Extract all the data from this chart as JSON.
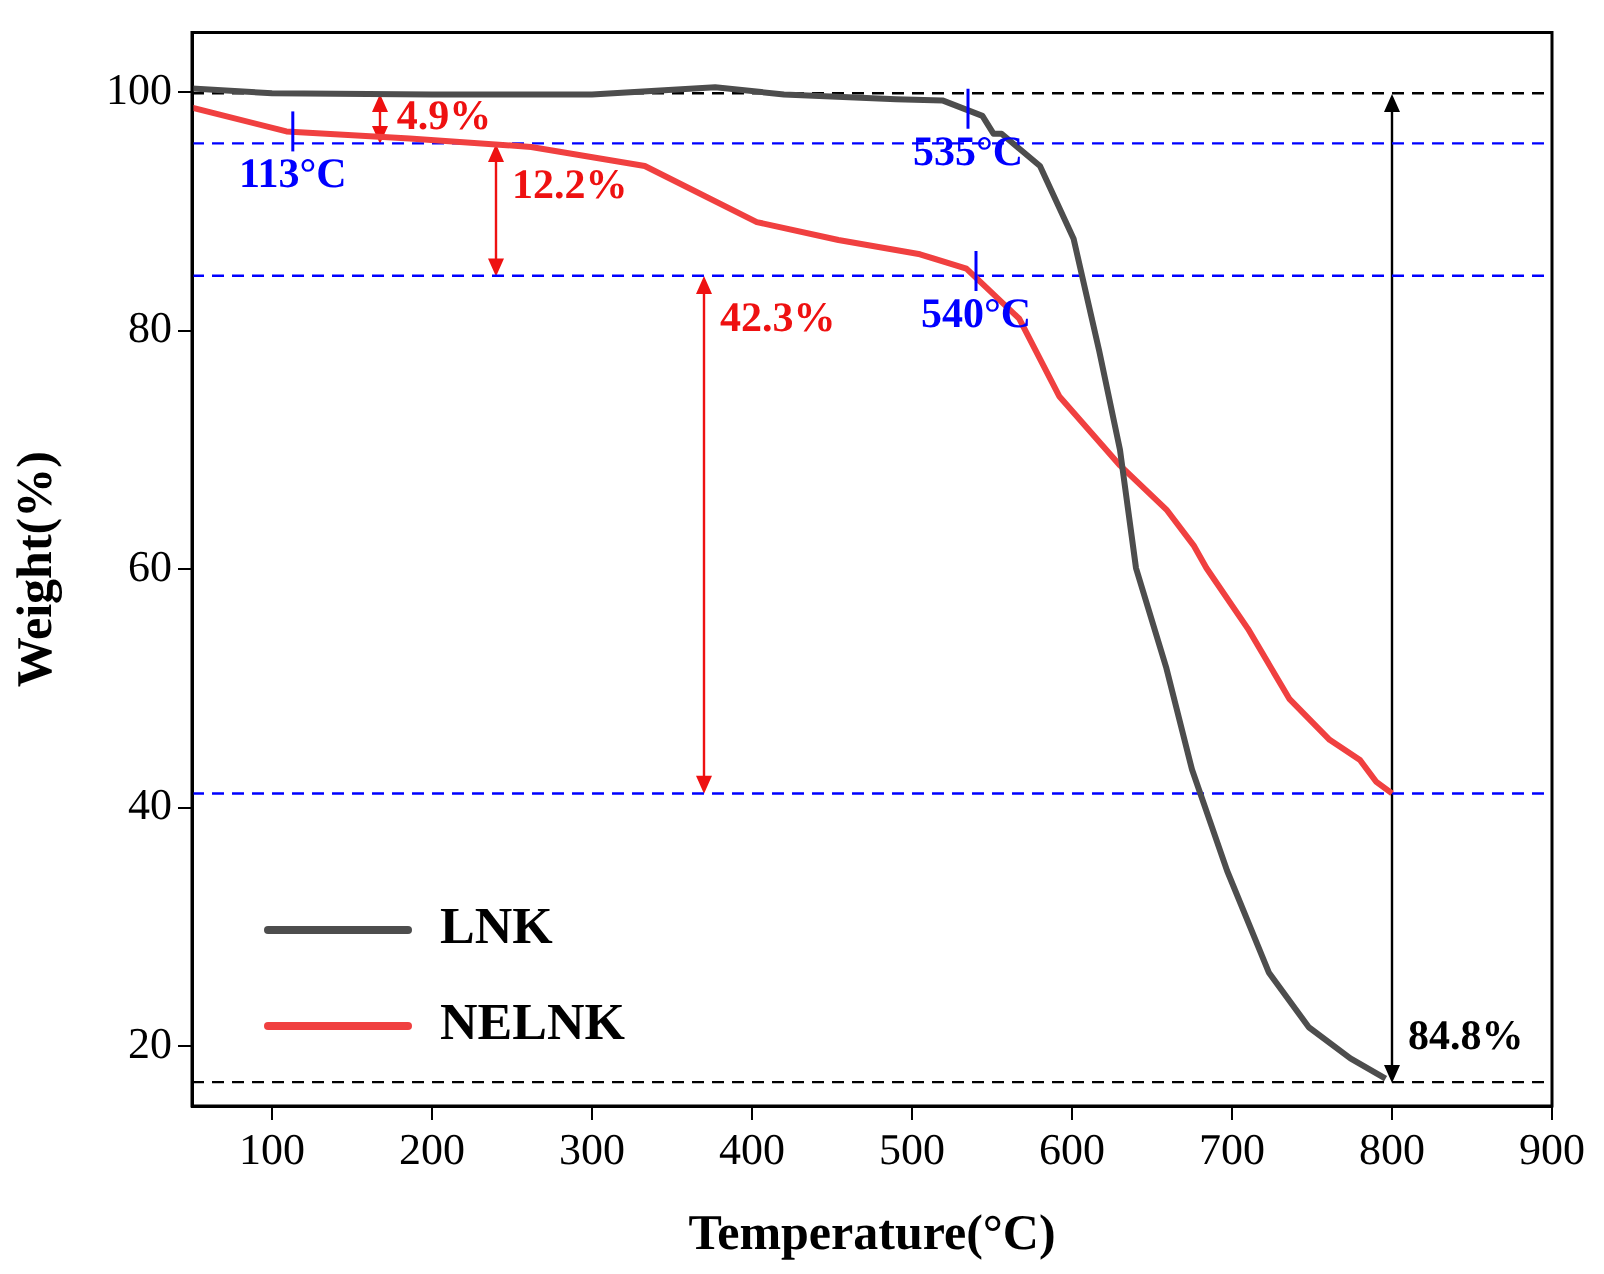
{
  "chart_data": {
    "type": "line",
    "xlabel": "Temperature(°C)",
    "ylabel": "Weight(%)",
    "xlim": [
      50,
      900
    ],
    "xticks": [
      100,
      200,
      300,
      400,
      500,
      600,
      700,
      800,
      900
    ],
    "ylim": [
      15,
      105
    ],
    "yticks": [
      20,
      40,
      60,
      80,
      100
    ],
    "grid": false,
    "legend": "bottom left",
    "marker": "none",
    "line_style": "solid",
    "series": [
      {
        "name": "LNK",
        "color": "#4d4d4d",
        "x": [
          50,
          100,
          200,
          300,
          377,
          420,
          490,
          519,
          544,
          551,
          556,
          580,
          601,
          617,
          630,
          640,
          659,
          675,
          697,
          723,
          748,
          774,
          796
        ],
        "values": [
          100.3,
          99.9,
          99.8,
          99.8,
          100.4,
          99.8,
          99.4,
          99.3,
          98,
          96.5,
          96.5,
          93.8,
          87.7,
          78.3,
          70,
          60.1,
          51.7,
          43.2,
          34.7,
          26.2,
          21.6,
          19,
          17.3
        ]
      },
      {
        "name": "NELNK",
        "color": "#f04040",
        "x": [
          50,
          109,
          186,
          262,
          333,
          403,
          454,
          505,
          534,
          567,
          592,
          630,
          659,
          676,
          684,
          710,
          736,
          761,
          780,
          790,
          800
        ],
        "values": [
          98.7,
          96.7,
          96.1,
          95.4,
          93.8,
          89.1,
          87.6,
          86.4,
          85.2,
          81,
          74.5,
          68.7,
          65,
          62,
          60.1,
          55,
          49.1,
          45.7,
          44,
          42.2,
          41.2
        ]
      }
    ],
    "ref_lines": [
      {
        "axis": "y",
        "value": 99.9,
        "color": "#000000",
        "line_style": "dashed"
      },
      {
        "axis": "y",
        "value": 95.7,
        "color": "#0000ff",
        "line_style": "dashed"
      },
      {
        "axis": "y",
        "value": 84.6,
        "color": "#0000ff",
        "line_style": "dashed"
      },
      {
        "axis": "y",
        "value": 41.2,
        "color": "#0000ff",
        "line_style": "dashed"
      },
      {
        "axis": "y",
        "value": 17,
        "color": "#000000",
        "line_style": "dashed"
      }
    ],
    "annotations": [
      {
        "text": "113°C",
        "x": 113,
        "y": 96.7
      },
      {
        "text": "535°C",
        "x": 535,
        "y": 98.6
      },
      {
        "text": "540°C",
        "x": 540,
        "y": 85
      },
      {
        "text": "4.9%",
        "x": 168,
        "y": 99.9
      },
      {
        "text": "12.2%",
        "x": 240,
        "y": 95.7
      },
      {
        "text": "42.3%",
        "x": 370,
        "y": 84.6
      },
      {
        "text": "84.8%",
        "x": 800,
        "y": 17
      }
    ]
  }
}
